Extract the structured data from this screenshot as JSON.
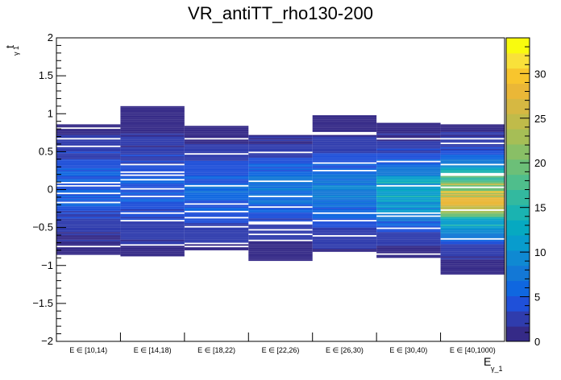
{
  "chart_data": {
    "type": "heatmap",
    "title": "VR_antiTT_rho130-200",
    "xlabel": "E",
    "xlabel_sub": "γ_1",
    "ylabel": "t",
    "ylabel_sub": "γ 1",
    "categories": [
      "E ∈ [10,14)",
      "E ∈ [14,18)",
      "E ∈ [18,22)",
      "E ∈ [22,26)",
      "E ∈ [26,30)",
      "E ∈ [30,40)",
      "E ∈ [40,1000)"
    ],
    "ylim": [
      -2,
      2
    ],
    "y_ticks": [
      -2,
      -1.5,
      -1,
      -0.5,
      0,
      0.5,
      1,
      1.5,
      2
    ],
    "y_tick_labels": [
      "−2",
      "−1.5",
      "−1",
      "−0.5",
      "0",
      "0.5",
      "1",
      "1.5",
      "2"
    ],
    "zlim": [
      0,
      34
    ],
    "z_ticks": [
      0,
      5,
      10,
      15,
      20,
      25,
      30
    ],
    "z_tick_labels": [
      "0",
      "5",
      "10",
      "15",
      "20",
      "25",
      "30"
    ],
    "palette": [
      "#352a87",
      "#2f3cad",
      "#1f50d9",
      "#0f67e0",
      "#1378d6",
      "#0f89d2",
      "#089ccd",
      "#06a9c1",
      "#1ab3b1",
      "#33b99f",
      "#4fbe8c",
      "#6cbf78",
      "#89bf66",
      "#a6be56",
      "#c0bb4a",
      "#d6b842",
      "#eab737",
      "#f8c52d",
      "#f9e13a",
      "#f9fb0e"
    ],
    "columns": [
      {
        "category": "E ∈ [10,14)",
        "ymin": -0.85,
        "ymax": 0.85,
        "peak": 4.6,
        "mean": 0.05,
        "sigma": 0.34
      },
      {
        "category": "E ∈ [14,18)",
        "ymin": -0.88,
        "ymax": 1.1,
        "peak": 3.9,
        "mean": 0.02,
        "sigma": 0.36
      },
      {
        "category": "E ∈ [18,22)",
        "ymin": -0.8,
        "ymax": 0.83,
        "peak": 4.8,
        "mean": -0.02,
        "sigma": 0.32
      },
      {
        "category": "E ∈ [22,26)",
        "ymin": -0.93,
        "ymax": 0.75,
        "peak": 6.2,
        "mean": 0.0,
        "sigma": 0.3
      },
      {
        "category": "E ∈ [26,30)",
        "ymin": -0.82,
        "ymax": 0.98,
        "peak": 6.5,
        "mean": -0.02,
        "sigma": 0.34
      },
      {
        "category": "E ∈ [30,40)",
        "ymin": -0.9,
        "ymax": 0.87,
        "peak": 11.5,
        "mean": -0.05,
        "sigma": 0.3
      },
      {
        "category": "E ∈ [40,1000)",
        "ymin": -1.13,
        "ymax": 0.85,
        "peak": 23.5,
        "mean": -0.1,
        "sigma": 0.3
      }
    ]
  }
}
